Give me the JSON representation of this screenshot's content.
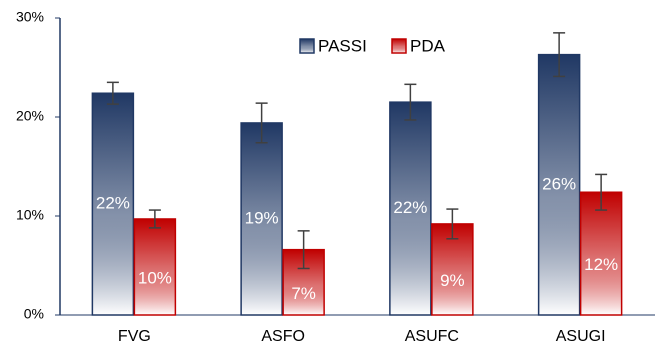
{
  "chart_data": {
    "type": "bar",
    "categories": [
      "FVG",
      "ASFO",
      "ASUFC",
      "ASUGI"
    ],
    "series": [
      {
        "name": "PASSI",
        "color": "#203864",
        "values": [
          22.4,
          19.4,
          21.5,
          26.3
        ],
        "value_labels": [
          "22%",
          "19%",
          "22%",
          "26%"
        ],
        "errors": [
          1.1,
          2.0,
          1.8,
          2.2
        ]
      },
      {
        "name": "PDA",
        "color": "#c00000",
        "values": [
          9.7,
          6.6,
          9.2,
          12.4
        ],
        "value_labels": [
          "10%",
          "7%",
          "9%",
          "12%"
        ],
        "errors": [
          0.9,
          1.9,
          1.5,
          1.8
        ]
      }
    ],
    "ylim": [
      0,
      30
    ],
    "yticks": [
      {
        "value": 0,
        "label": "0%"
      },
      {
        "value": 10,
        "label": "10%"
      },
      {
        "value": 20,
        "label": "20%"
      },
      {
        "value": 30,
        "label": "30%"
      }
    ],
    "grid": false,
    "legend": "top"
  }
}
